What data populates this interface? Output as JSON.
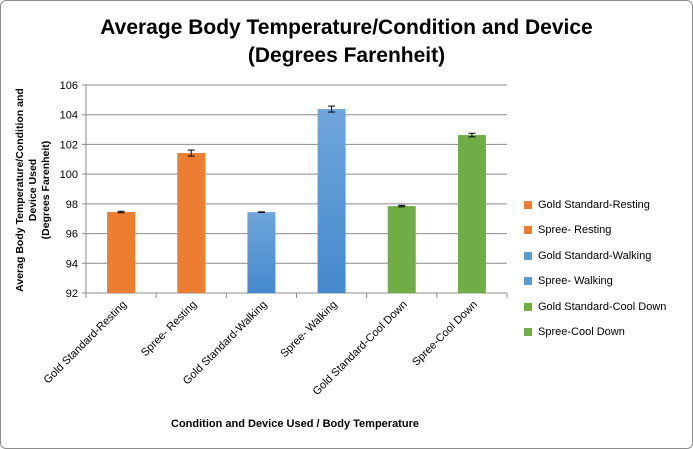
{
  "chart_data": {
    "type": "bar",
    "title": "Average Body Temperature/Condition and Device (Degrees Farenheit)",
    "title_lines": [
      "Average Body Temperature/Condition and Device",
      "(Degrees Farenheit)"
    ],
    "xlabel": "Condition and Device Used / Body Temperature",
    "ylabel_lines": [
      "Averag Body Temperature/Condition and Device Used",
      "(Degrees Farenheit)"
    ],
    "ylim": [
      92,
      106
    ],
    "yticks": [
      92,
      94,
      96,
      98,
      100,
      102,
      104,
      106
    ],
    "grid": true,
    "legend_position": "right",
    "categories": [
      "Gold Standard-Resting",
      "Spree- Resting",
      "Gold Standard-Walking",
      "Spree- Walking",
      "Gold Standard-Cool Down",
      "Spree-Cool Down"
    ],
    "values": [
      97.45,
      101.42,
      97.44,
      104.38,
      97.85,
      102.63
    ],
    "errors": [
      0.05,
      0.2,
      0.02,
      0.2,
      0.05,
      0.12
    ],
    "colors": [
      "#ED7D31",
      "#ED7D31",
      "#5B9BD5",
      "#5B9BD5",
      "#70AD47",
      "#70AD47"
    ],
    "legend": [
      "Gold Standard-Resting",
      "Spree- Resting",
      "Gold Standard-Walking",
      "Spree- Walking",
      "Gold Standard-Cool Down",
      "Spree-Cool Down"
    ]
  }
}
